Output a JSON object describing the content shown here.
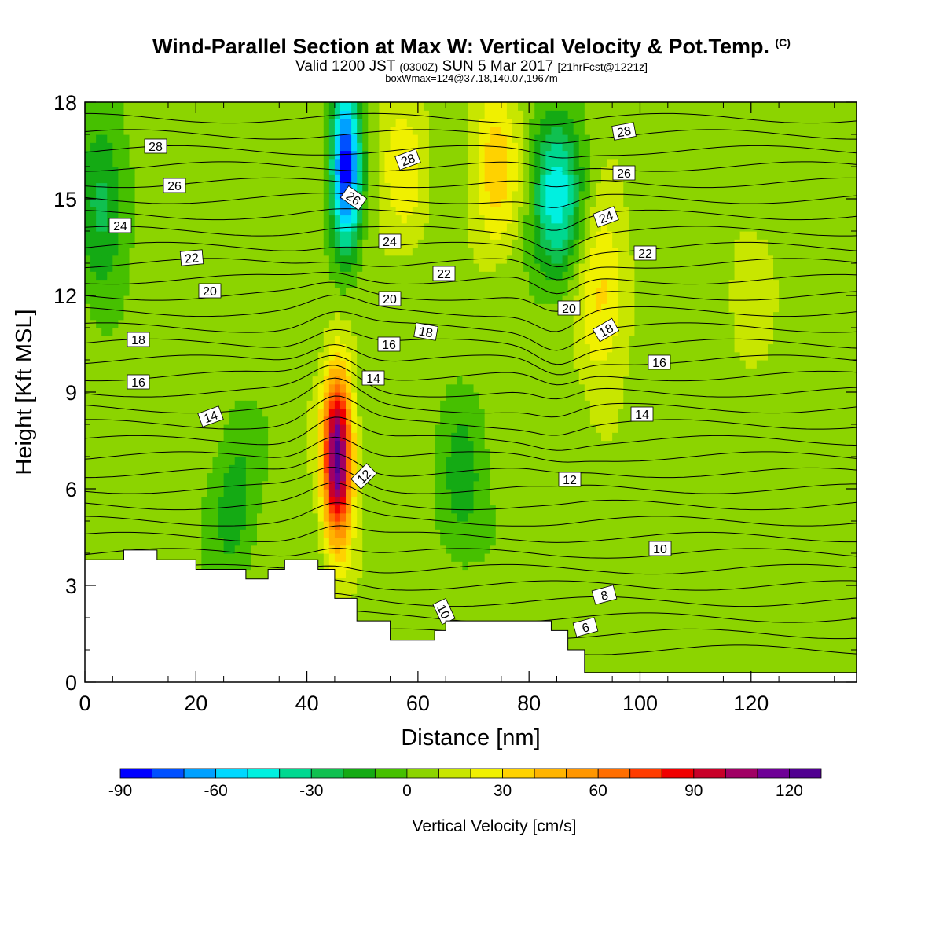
{
  "header": {
    "title": "Wind-Parallel Section at Max W: Vertical Velocity & Pot.Temp.",
    "title_mark": "(C)",
    "subtitle_main": "Valid 1200 JST",
    "subtitle_utc": "(0300Z)",
    "subtitle_date": "SUN 5 Mar 2017",
    "subtitle_fcst": "[21hrFcst@1221z]",
    "info": "boxWmax=124@37.18,140.07,1967m"
  },
  "chart_data": {
    "type": "heatmap",
    "title": "Wind-Parallel Section at Max W: Vertical Velocity & Pot.Temp.",
    "xlabel": "Distance [nm]",
    "ylabel": "Height [Kft MSL]",
    "xlim": [
      0,
      139
    ],
    "ylim": [
      0,
      18
    ],
    "x_ticks": [
      0,
      20,
      40,
      60,
      80,
      100,
      120
    ],
    "y_ticks": [
      0,
      3,
      6,
      9,
      12,
      15,
      18
    ],
    "grid": false,
    "colorbar": {
      "title": "Vertical Velocity [cm/s]",
      "tick_values": [
        -90,
        -60,
        -30,
        0,
        30,
        60,
        90,
        120
      ],
      "bin_edges": [
        -90,
        130
      ],
      "bin_width": 10,
      "colors": [
        "#0000ff",
        "#0050ff",
        "#00a0ff",
        "#00d8ff",
        "#00f0e0",
        "#00d890",
        "#10c050",
        "#14aa14",
        "#46c000",
        "#8cd400",
        "#c8e600",
        "#f0f000",
        "#ffd200",
        "#ffb400",
        "#ff9600",
        "#ff6e00",
        "#ff3c00",
        "#f00000",
        "#c80028",
        "#a00064",
        "#6e0096",
        "#500090"
      ]
    },
    "theta_contour_labels_C": [
      6,
      8,
      10,
      10,
      12,
      12,
      14,
      14,
      14,
      16,
      16,
      16,
      18,
      18,
      18,
      20,
      20,
      20,
      22,
      22,
      22,
      24,
      24,
      24,
      26,
      26,
      26,
      28,
      28,
      28
    ],
    "background_w_cm_s": 5,
    "w_features": [
      {
        "x_nm": 45.5,
        "height_kft": 7.0,
        "w_cm_s": 124
      },
      {
        "x_nm": 47,
        "height_kft": 16,
        "w_cm_s": -85
      },
      {
        "x_nm": 85,
        "height_kft": 15,
        "w_cm_s": -45
      },
      {
        "x_nm": 93,
        "height_kft": 12,
        "w_cm_s": 35
      },
      {
        "x_nm": 74,
        "height_kft": 16,
        "w_cm_s": 35
      },
      {
        "x_nm": 57,
        "height_kft": 16,
        "w_cm_s": 25
      },
      {
        "x_nm": 3,
        "height_kft": 15,
        "w_cm_s": -25
      },
      {
        "x_nm": 27,
        "height_kft": 5.5,
        "w_cm_s": -15
      },
      {
        "x_nm": 68,
        "height_kft": 6,
        "w_cm_s": -15
      },
      {
        "x_nm": 120,
        "height_kft": 12,
        "w_cm_s": 15
      }
    ],
    "terrain_kft": [
      [
        0,
        3.8
      ],
      [
        7,
        4.1
      ],
      [
        13,
        3.8
      ],
      [
        20,
        3.5
      ],
      [
        29,
        3.2
      ],
      [
        33,
        3.5
      ],
      [
        36,
        3.8
      ],
      [
        42,
        3.5
      ],
      [
        45,
        2.6
      ],
      [
        49,
        1.9
      ],
      [
        55,
        1.3
      ],
      [
        63,
        1.6
      ],
      [
        65,
        1.9
      ],
      [
        84,
        1.6
      ],
      [
        87,
        1.0
      ],
      [
        90,
        0.3
      ],
      [
        139,
        0.3
      ]
    ]
  }
}
